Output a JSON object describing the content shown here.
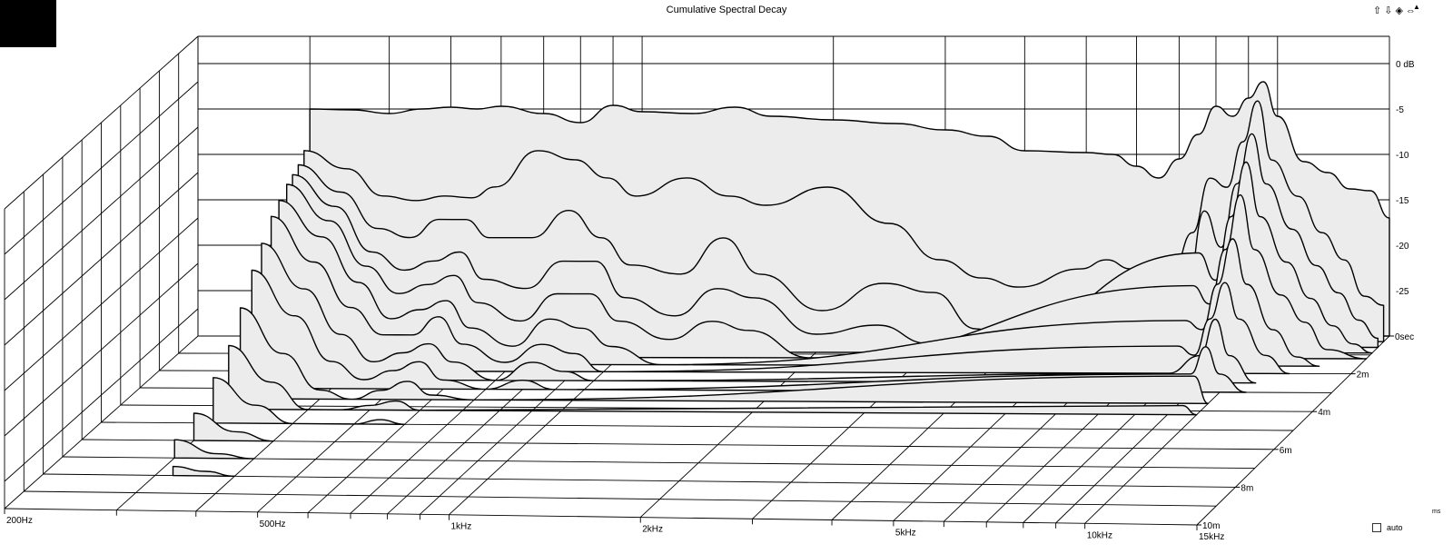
{
  "title": "Cumulative Spectral Decay",
  "nav": {
    "up": "⇧",
    "down": "⇩",
    "toggle": "◈",
    "zoom": "⇔"
  },
  "scroll_arrow": "▲",
  "auto_label": "auto",
  "ms_unit": "ms",
  "colors": {
    "fill": "#ececec",
    "stroke": "#000000",
    "grid": "#000000"
  },
  "chart_data": {
    "type": "waterfall",
    "title": "Cumulative Spectral Decay",
    "x_axis": {
      "scale": "log",
      "range_hz": [
        200,
        15000
      ],
      "tick_labels": [
        "200Hz",
        "500Hz",
        "1kHz",
        "2kHz",
        "5kHz",
        "10kHz",
        "15kHz"
      ],
      "tick_values": [
        200,
        500,
        1000,
        2000,
        5000,
        10000,
        15000
      ]
    },
    "z_axis": {
      "range_db": [
        -30,
        0
      ],
      "tick_labels": [
        "0 dB",
        "-5",
        "-10",
        "-15",
        "-20",
        "-25"
      ],
      "tick_values": [
        0,
        -5,
        -10,
        -15,
        -20,
        -25
      ]
    },
    "t_axis": {
      "range_ms": [
        0,
        10
      ],
      "tick_labels": [
        "0sec",
        "2m",
        "4m",
        "6m",
        "8m",
        "10m"
      ],
      "tick_values": [
        0,
        2,
        4,
        6,
        8,
        10
      ]
    },
    "freq_grid_hz": [
      200,
      300,
      400,
      500,
      600,
      700,
      800,
      900,
      1000,
      2000,
      3000,
      4000,
      5000,
      6000,
      7000,
      8000,
      9000,
      10000,
      15000
    ],
    "slices": [
      {
        "t_ms": 0.0,
        "points": [
          [
            300,
            -5
          ],
          [
            350,
            -5.1
          ],
          [
            400,
            -5.5
          ],
          [
            450,
            -5.0
          ],
          [
            500,
            -4.8
          ],
          [
            550,
            -5.0
          ],
          [
            600,
            -4.7
          ],
          [
            700,
            -5.5
          ],
          [
            800,
            -6.5
          ],
          [
            900,
            -4.6
          ],
          [
            1000,
            -5.3
          ],
          [
            1200,
            -5.5
          ],
          [
            1400,
            -4.8
          ],
          [
            1600,
            -5.8
          ],
          [
            2000,
            -6.2
          ],
          [
            2500,
            -6.6
          ],
          [
            3000,
            -7.3
          ],
          [
            3500,
            -8.0
          ],
          [
            4000,
            -9.6
          ],
          [
            5000,
            -9.8
          ],
          [
            5500,
            -10.0
          ],
          [
            6000,
            -11.3
          ],
          [
            6500,
            -12.6
          ],
          [
            7000,
            -10.5
          ],
          [
            7500,
            -7.8
          ],
          [
            8000,
            -4.7
          ],
          [
            8500,
            -5.8
          ],
          [
            9000,
            -3.8
          ],
          [
            9500,
            -2.0
          ],
          [
            10000,
            -5.8
          ],
          [
            11000,
            -10.8
          ],
          [
            12000,
            -12.0
          ],
          [
            13000,
            -13.8
          ],
          [
            14000,
            -14.0
          ],
          [
            15000,
            -17.0
          ]
        ]
      },
      {
        "t_ms": 0.3,
        "points": [
          [
            300,
            -9
          ],
          [
            350,
            -11
          ],
          [
            400,
            -14
          ],
          [
            450,
            -14.5
          ],
          [
            500,
            -14.0
          ],
          [
            550,
            -14.2
          ],
          [
            600,
            -13
          ],
          [
            700,
            -9.0
          ],
          [
            800,
            -10
          ],
          [
            900,
            -12
          ],
          [
            1000,
            -14
          ],
          [
            1200,
            -12
          ],
          [
            1400,
            -14
          ],
          [
            1600,
            -15
          ],
          [
            2000,
            -13
          ],
          [
            2500,
            -17
          ],
          [
            3000,
            -21
          ],
          [
            3500,
            -23
          ],
          [
            4000,
            -24
          ],
          [
            5000,
            -22
          ],
          [
            5500,
            -21
          ],
          [
            6000,
            -22
          ],
          [
            6500,
            -24
          ],
          [
            7000,
            -22
          ],
          [
            7500,
            -18
          ],
          [
            8000,
            -12
          ],
          [
            8500,
            -13
          ],
          [
            9000,
            -8
          ],
          [
            9500,
            -3.5
          ],
          [
            10000,
            -10
          ],
          [
            11000,
            -14
          ],
          [
            12000,
            -18
          ],
          [
            13000,
            -21
          ],
          [
            14000,
            -25
          ],
          [
            15000,
            -26
          ]
        ]
      },
      {
        "t_ms": 0.6,
        "points": [
          [
            300,
            -10
          ],
          [
            350,
            -13
          ],
          [
            400,
            -17
          ],
          [
            450,
            -18
          ],
          [
            500,
            -16
          ],
          [
            550,
            -16
          ],
          [
            600,
            -18
          ],
          [
            700,
            -18
          ],
          [
            800,
            -15
          ],
          [
            900,
            -18
          ],
          [
            1000,
            -21
          ],
          [
            1200,
            -22
          ],
          [
            1400,
            -18
          ],
          [
            1600,
            -22
          ],
          [
            2000,
            -26
          ],
          [
            2500,
            -23
          ],
          [
            3000,
            -24
          ],
          [
            3500,
            -28
          ],
          [
            4000,
            -30
          ],
          [
            5000,
            -30
          ],
          [
            5500,
            -30
          ],
          [
            6000,
            -30
          ],
          [
            6500,
            -30
          ],
          [
            7000,
            -29
          ],
          [
            7500,
            -24
          ],
          [
            8000,
            -15
          ],
          [
            8500,
            -19
          ],
          [
            9000,
            -12
          ],
          [
            9500,
            -6.5
          ],
          [
            10000,
            -12
          ],
          [
            11000,
            -17
          ],
          [
            12000,
            -21
          ],
          [
            13000,
            -24
          ],
          [
            14000,
            -27
          ],
          [
            15000,
            -29
          ]
        ]
      },
      {
        "t_ms": 0.9,
        "points": [
          [
            300,
            -10.5
          ],
          [
            350,
            -14
          ],
          [
            400,
            -19
          ],
          [
            450,
            -21
          ],
          [
            500,
            -20
          ],
          [
            550,
            -19
          ],
          [
            600,
            -22
          ],
          [
            700,
            -23
          ],
          [
            800,
            -20
          ],
          [
            900,
            -20
          ],
          [
            1000,
            -24
          ],
          [
            1200,
            -26
          ],
          [
            1400,
            -23
          ],
          [
            1600,
            -24
          ],
          [
            2000,
            -28
          ],
          [
            2500,
            -27
          ],
          [
            3000,
            -29
          ],
          [
            3500,
            -30
          ],
          [
            8000,
            -19
          ],
          [
            8500,
            -22
          ],
          [
            9000,
            -15
          ],
          [
            9500,
            -9
          ],
          [
            10000,
            -15
          ],
          [
            11000,
            -20
          ],
          [
            12000,
            -24
          ],
          [
            13000,
            -27
          ],
          [
            14000,
            -29
          ],
          [
            15000,
            -30
          ]
        ]
      },
      {
        "t_ms": 1.2,
        "points": [
          [
            300,
            -11
          ],
          [
            350,
            -15
          ],
          [
            400,
            -20
          ],
          [
            450,
            -23
          ],
          [
            500,
            -22
          ],
          [
            550,
            -21
          ],
          [
            600,
            -24
          ],
          [
            700,
            -26
          ],
          [
            800,
            -23
          ],
          [
            900,
            -23
          ],
          [
            1000,
            -26
          ],
          [
            1200,
            -28
          ],
          [
            1400,
            -26
          ],
          [
            1600,
            -27
          ],
          [
            2000,
            -30
          ],
          [
            8000,
            -22
          ],
          [
            8500,
            -24
          ],
          [
            9000,
            -18
          ],
          [
            9500,
            -12
          ],
          [
            10000,
            -18
          ],
          [
            11000,
            -23
          ],
          [
            12000,
            -26
          ],
          [
            13000,
            -29
          ],
          [
            15000,
            -30
          ]
        ]
      },
      {
        "t_ms": 1.6,
        "points": [
          [
            300,
            -12
          ],
          [
            350,
            -16
          ],
          [
            400,
            -21
          ],
          [
            450,
            -25
          ],
          [
            500,
            -24
          ],
          [
            550,
            -23
          ],
          [
            600,
            -26
          ],
          [
            700,
            -28
          ],
          [
            800,
            -25
          ],
          [
            900,
            -26
          ],
          [
            1000,
            -28
          ],
          [
            1200,
            -30
          ],
          [
            8000,
            -25
          ],
          [
            8500,
            -26
          ],
          [
            9000,
            -21
          ],
          [
            9500,
            -16
          ],
          [
            10000,
            -21
          ],
          [
            11000,
            -26
          ],
          [
            12000,
            -29
          ],
          [
            13000,
            -30
          ]
        ]
      },
      {
        "t_ms": 2.0,
        "points": [
          [
            300,
            -13
          ],
          [
            350,
            -18
          ],
          [
            400,
            -23
          ],
          [
            450,
            -26
          ],
          [
            500,
            -26
          ],
          [
            550,
            -24
          ],
          [
            600,
            -27
          ],
          [
            700,
            -29
          ],
          [
            800,
            -27
          ],
          [
            900,
            -28
          ],
          [
            1000,
            -30
          ],
          [
            8000,
            -27
          ],
          [
            8500,
            -28
          ],
          [
            9000,
            -24
          ],
          [
            9500,
            -20
          ],
          [
            10000,
            -24
          ],
          [
            11000,
            -28
          ],
          [
            12000,
            -30
          ]
        ]
      },
      {
        "t_ms": 2.5,
        "points": [
          [
            300,
            -15
          ],
          [
            350,
            -20
          ],
          [
            400,
            -25
          ],
          [
            450,
            -28
          ],
          [
            500,
            -27
          ],
          [
            550,
            -26
          ],
          [
            600,
            -28
          ],
          [
            700,
            -30
          ],
          [
            800,
            -28
          ],
          [
            900,
            -29
          ],
          [
            1000,
            -30
          ],
          [
            8000,
            -29
          ],
          [
            9000,
            -27
          ],
          [
            9500,
            -23
          ],
          [
            10000,
            -27
          ],
          [
            11000,
            -30
          ]
        ]
      },
      {
        "t_ms": 3.0,
        "points": [
          [
            300,
            -17
          ],
          [
            350,
            -22
          ],
          [
            400,
            -27
          ],
          [
            450,
            -29
          ],
          [
            500,
            -28
          ],
          [
            550,
            -27
          ],
          [
            600,
            -29
          ],
          [
            700,
            -30
          ],
          [
            800,
            -29
          ],
          [
            900,
            -30
          ],
          [
            9000,
            -28
          ],
          [
            9500,
            -25
          ],
          [
            10000,
            -28
          ],
          [
            11000,
            -30
          ]
        ]
      },
      {
        "t_ms": 3.6,
        "points": [
          [
            300,
            -20
          ],
          [
            350,
            -25
          ],
          [
            400,
            -29
          ],
          [
            450,
            -30
          ],
          [
            500,
            -29
          ],
          [
            550,
            -28
          ],
          [
            600,
            -29.5
          ],
          [
            700,
            -30
          ],
          [
            9500,
            -27
          ],
          [
            10000,
            -30
          ]
        ]
      },
      {
        "t_ms": 4.2,
        "points": [
          [
            300,
            -23
          ],
          [
            350,
            -27
          ],
          [
            400,
            -30
          ],
          [
            450,
            -30
          ],
          [
            500,
            -29.5
          ],
          [
            550,
            -29
          ],
          [
            600,
            -30
          ],
          [
            9500,
            -29
          ],
          [
            10000,
            -30
          ]
        ]
      },
      {
        "t_ms": 5.0,
        "points": [
          [
            300,
            -25
          ],
          [
            350,
            -28
          ],
          [
            400,
            -30
          ],
          [
            500,
            -30
          ],
          [
            550,
            -29.5
          ],
          [
            600,
            -30
          ]
        ]
      },
      {
        "t_ms": 6.0,
        "points": [
          [
            300,
            -27
          ],
          [
            350,
            -29
          ],
          [
            400,
            -30
          ]
        ]
      },
      {
        "t_ms": 7.0,
        "points": [
          [
            300,
            -28
          ],
          [
            350,
            -29.5
          ],
          [
            400,
            -30
          ]
        ]
      },
      {
        "t_ms": 8.0,
        "points": [
          [
            320,
            -29
          ],
          [
            360,
            -29.5
          ],
          [
            400,
            -30
          ]
        ]
      }
    ]
  }
}
